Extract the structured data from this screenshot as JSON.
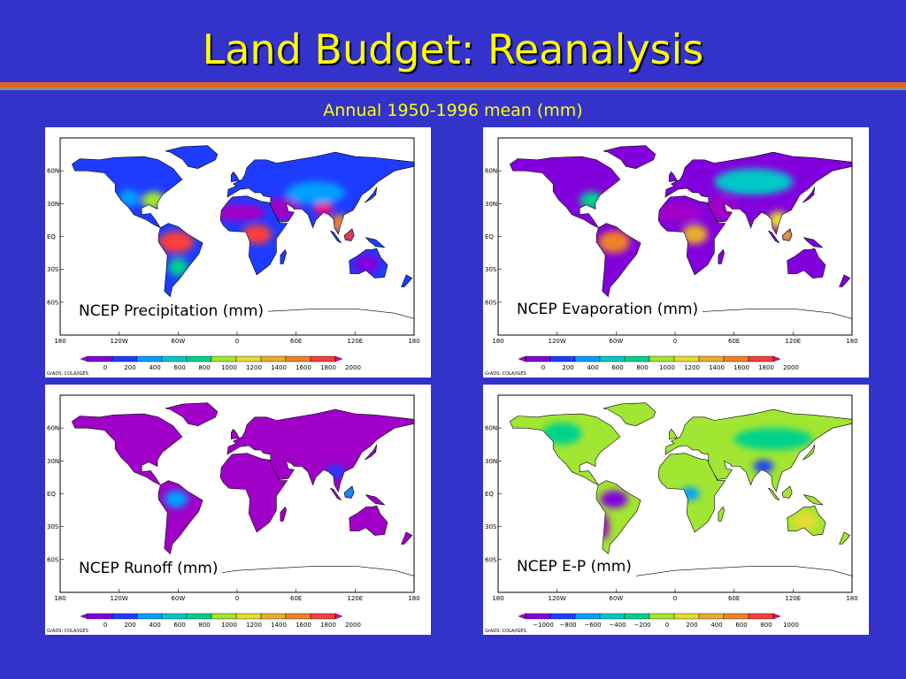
{
  "slide": {
    "title": "Land Budget: Reanalysis",
    "subtitle": "Annual 1950-1996 mean (mm)",
    "colors": {
      "background": "#3333cc",
      "title": "#ffff00",
      "rule_orange": "#e8641c",
      "rule_gray": "#8c8c8c"
    }
  },
  "map_axes": {
    "lat_labels": [
      "60N",
      "30N",
      "EQ",
      "30S",
      "60S"
    ],
    "lon_labels": [
      "180",
      "120W",
      "60W",
      "0",
      "60E",
      "120E",
      "180"
    ],
    "credit": "GrADS: COLA/IGES"
  },
  "panels": [
    {
      "label": "NCEP Precipitation (mm)",
      "colorbar": [
        "0",
        "200",
        "400",
        "600",
        "800",
        "1000",
        "1200",
        "1400",
        "1600",
        "1800",
        "2000"
      ],
      "field": "precip"
    },
    {
      "label": "NCEP Evaporation (mm)",
      "colorbar": [
        "0",
        "200",
        "400",
        "600",
        "800",
        "1000",
        "1200",
        "1400",
        "1600",
        "1800",
        "2000"
      ],
      "field": "evap"
    },
    {
      "label": "NCEP Runoff (mm)",
      "colorbar": [
        "0",
        "200",
        "400",
        "600",
        "800",
        "1000",
        "1200",
        "1400",
        "1600",
        "1800",
        "2000"
      ],
      "field": "runoff"
    },
    {
      "label": "NCEP E-P (mm)",
      "colorbar": [
        "−1000",
        "−800",
        "−600",
        "−400",
        "−200",
        "0",
        "200",
        "400",
        "600",
        "800",
        "1000"
      ],
      "field": "ep"
    }
  ],
  "colorbar_colors": [
    "#a000c8",
    "#8200dc",
    "#1e3cff",
    "#00a0ff",
    "#00c8c8",
    "#00d28c",
    "#a0e632",
    "#e6dc32",
    "#e6af2d",
    "#f08228",
    "#fa3c3c",
    "#f00082"
  ]
}
